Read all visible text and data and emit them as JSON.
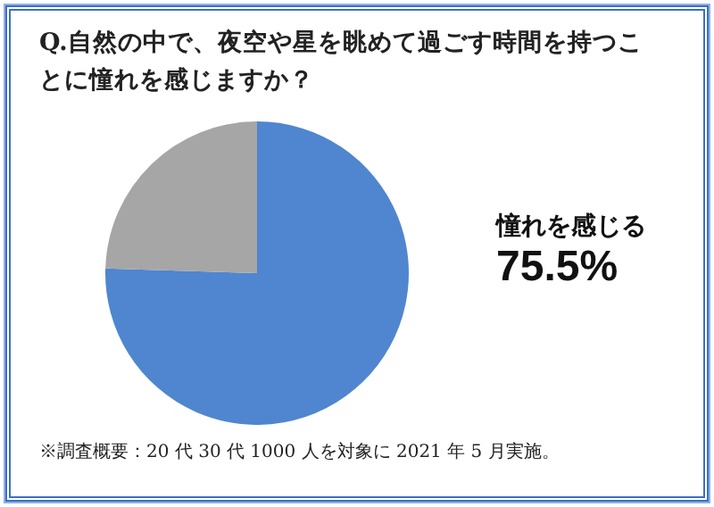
{
  "chart_data": {
    "type": "pie",
    "title": "Q.自然の中で、夜空や星を眺めて過ごす時間を持つことに憧れを感じますか？",
    "categories": [
      "憧れを感じる",
      null
    ],
    "values": [
      75.5,
      24.5
    ],
    "colors": [
      "#4f86cf",
      "#a6a6a6"
    ],
    "value_labels": [
      "75.5%",
      null
    ],
    "legend": false,
    "annotations": [
      "※調査概要：20 代 30 代 1000 人を対象に 2021 年 5 月実施。"
    ]
  }
}
